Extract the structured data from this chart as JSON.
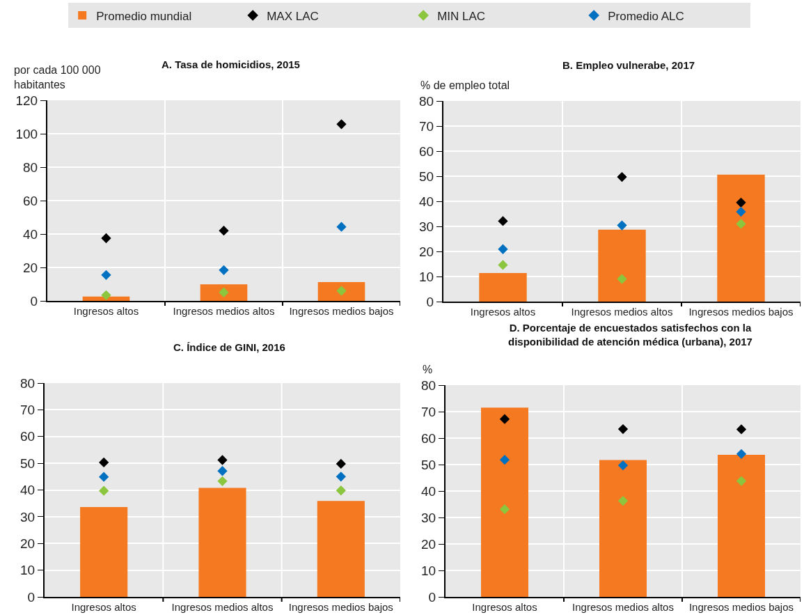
{
  "chart_data": [
    {
      "type": "bar",
      "title": "A. Tasa de homicidios, 2015",
      "ylabel": "por cada 100 000 habitantes",
      "categories": [
        "Ingresos altos",
        "Ingresos medios altos",
        "Ingresos medios bajos"
      ],
      "ylim": [
        0,
        120
      ],
      "yticks": [
        0,
        20,
        40,
        60,
        80,
        100,
        120
      ],
      "grid": true,
      "legend": "top",
      "marker": "diamond",
      "series": [
        {
          "name": "Promedio mundial",
          "color": "#f47920",
          "values": [
            2.6,
            9.9,
            11.2
          ]
        },
        {
          "name": "MAX LAC",
          "type": "scatter",
          "color": "#000000",
          "values": [
            37.5,
            42,
            105.7
          ]
        },
        {
          "name": "MIN LAC",
          "type": "scatter",
          "color": "#8cc63f",
          "values": [
            3.4,
            5.1,
            6.0
          ]
        },
        {
          "name": "Promedio ALC",
          "type": "scatter",
          "color": "#0070c0",
          "values": [
            15.5,
            18.4,
            44.3
          ]
        }
      ]
    },
    {
      "type": "bar",
      "title": "B. Empleo vulnerabe, 2017",
      "ylabel": "% de empleo total",
      "categories": [
        "Ingresos altos",
        "Ingresos medios altos",
        "Ingresos medios bajos"
      ],
      "ylim": [
        0,
        80
      ],
      "yticks": [
        0,
        10,
        20,
        30,
        40,
        50,
        60,
        70,
        80
      ],
      "grid": true,
      "marker": "diamond",
      "series": [
        {
          "name": "Promedio mundial",
          "color": "#f47920",
          "values": [
            11.4,
            28.7,
            50.6
          ]
        },
        {
          "name": "MAX LAC",
          "type": "scatter",
          "color": "#000000",
          "values": [
            32.1,
            49.7,
            39.5
          ]
        },
        {
          "name": "MIN LAC",
          "type": "scatter",
          "color": "#8cc63f",
          "values": [
            14.6,
            9.0,
            31.0
          ]
        },
        {
          "name": "Promedio ALC",
          "type": "scatter",
          "color": "#0070c0",
          "values": [
            20.9,
            30.4,
            35.8
          ]
        }
      ]
    },
    {
      "type": "bar",
      "title": "C. Índice de GINI, 2016",
      "categories": [
        "Ingresos altos",
        "Ingresos medios altos",
        "Ingresos medios bajos"
      ],
      "ylim": [
        0,
        80
      ],
      "yticks": [
        0,
        10,
        20,
        30,
        40,
        50,
        60,
        70,
        80
      ],
      "grid": true,
      "marker": "diamond",
      "series": [
        {
          "name": "Promedio mundial",
          "color": "#f47920",
          "values": [
            33.6,
            40.8,
            35.9
          ]
        },
        {
          "name": "MAX LAC",
          "type": "scatter",
          "color": "#000000",
          "values": [
            50.3,
            51.2,
            49.8
          ]
        },
        {
          "name": "MIN LAC",
          "type": "scatter",
          "color": "#8cc63f",
          "values": [
            39.7,
            43.3,
            39.8
          ]
        },
        {
          "name": "Promedio ALC",
          "type": "scatter",
          "color": "#0070c0",
          "values": [
            44.9,
            47.1,
            45.0
          ]
        }
      ]
    },
    {
      "type": "bar",
      "title": "D. Porcentaje de encuestados satisfechos con la disponibilidad de atención médica (urbana), 2017",
      "ylabel": "%",
      "categories": [
        "Ingresos altos",
        "Ingresos medios altos",
        "Ingresos medios bajos"
      ],
      "ylim": [
        0,
        80
      ],
      "yticks": [
        0,
        10,
        20,
        30,
        40,
        50,
        60,
        70,
        80
      ],
      "grid": true,
      "marker": "diamond",
      "series": [
        {
          "name": "Promedio mundial",
          "color": "#f47920",
          "values": [
            71.5,
            51.7,
            53.7
          ]
        },
        {
          "name": "MAX LAC",
          "type": "scatter",
          "color": "#000000",
          "values": [
            67.2,
            63.4,
            63.3
          ]
        },
        {
          "name": "MIN LAC",
          "type": "scatter",
          "color": "#8cc63f",
          "values": [
            33.1,
            36.3,
            43.8
          ]
        },
        {
          "name": "Promedio ALC",
          "type": "scatter",
          "color": "#0070c0",
          "values": [
            51.8,
            49.7,
            54.0
          ]
        }
      ]
    }
  ]
}
